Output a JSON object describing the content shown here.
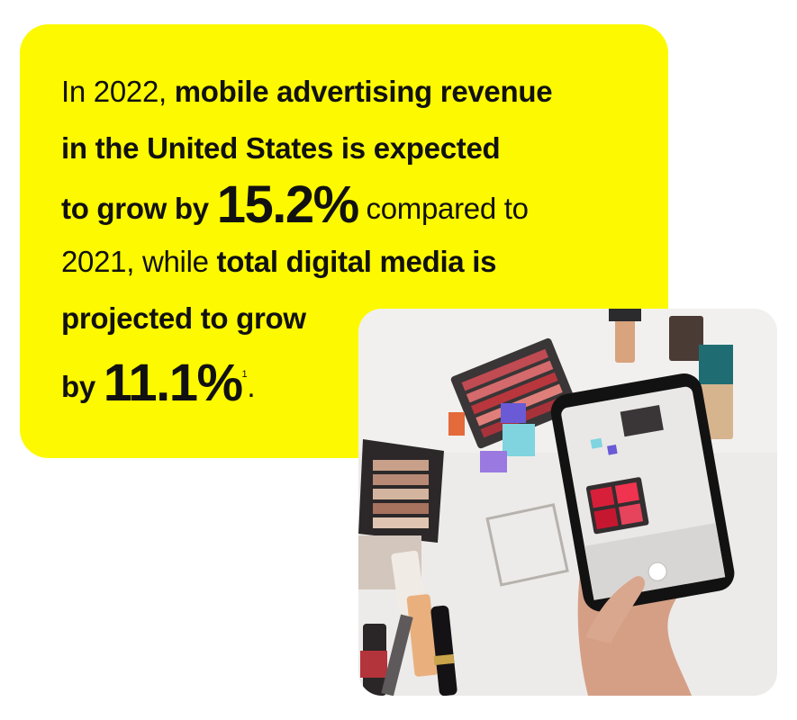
{
  "statement": {
    "line1_regular": "In 2022, ",
    "line1_bold": "mobile advertising revenue",
    "line2_bold": "in the United States is expected",
    "line3_bold": "to grow by ",
    "mobile_growth": "15.2%",
    "line3_regular": " compared to",
    "line4_regular": "2021, while ",
    "line4_bold": "total digital media is",
    "line5_bold": "projected to grow",
    "line6_bold": "by ",
    "digital_growth": "11.1%",
    "footnote_mark": "1",
    "end_period": "."
  },
  "photo": {
    "icon": "phone-photographing-makeup-image"
  },
  "colors": {
    "accent": "#fdf900",
    "text": "#111111"
  }
}
